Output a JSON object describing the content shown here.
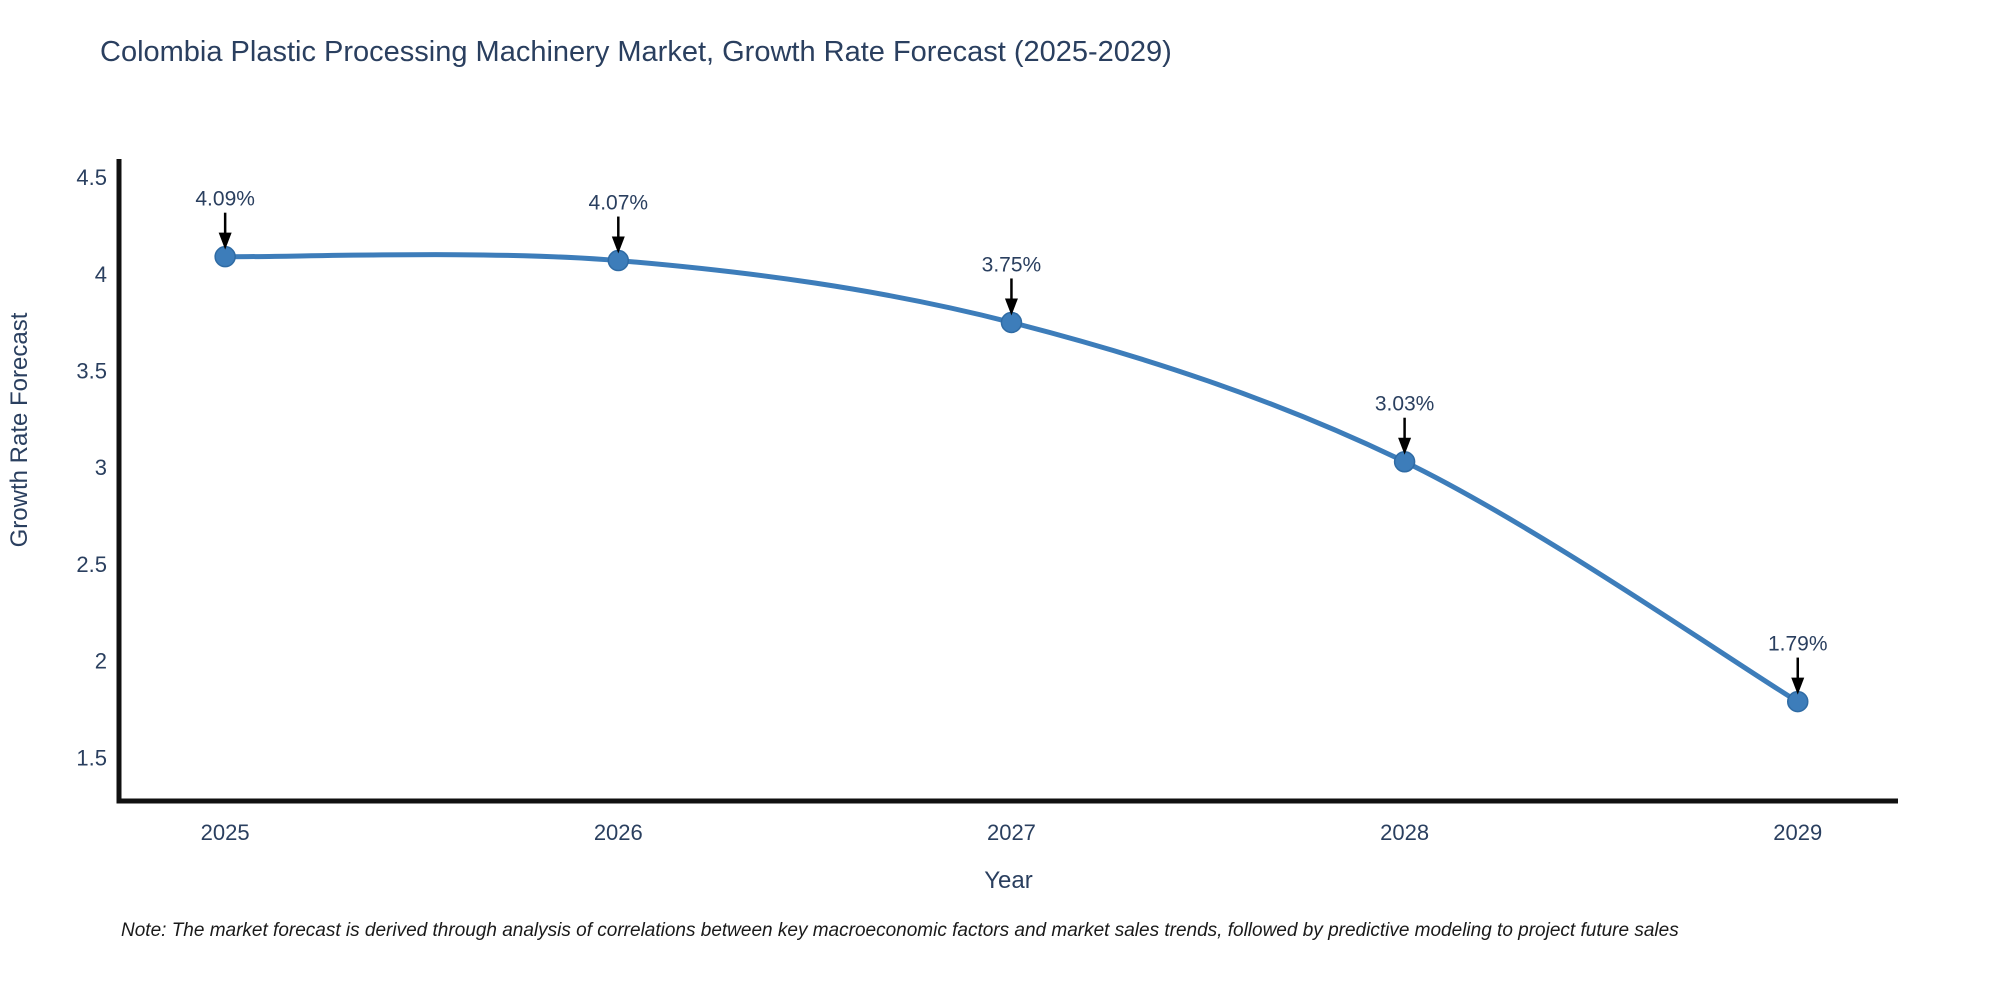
{
  "title": "Colombia Plastic Processing Machinery Market, Growth Rate Forecast (2025-2029)",
  "note": "Note: The market forecast is derived through analysis of correlations between key macroeconomic factors and market sales trends, followed by predictive modeling to project future sales",
  "chart_data": {
    "type": "line",
    "title": "Colombia Plastic Processing Machinery Market, Growth Rate Forecast (2025-2029)",
    "x": [
      2025,
      2026,
      2027,
      2028,
      2029
    ],
    "xticks": [
      "2025",
      "2026",
      "2027",
      "2028",
      "2029"
    ],
    "series": [
      {
        "name": "Growth Rate Forecast",
        "values": [
          4.09,
          4.07,
          3.75,
          3.03,
          1.79
        ]
      }
    ],
    "point_labels": [
      "4.09%",
      "4.07%",
      "3.75%",
      "3.03%",
      "1.79%"
    ],
    "xlabel": "Year",
    "ylabel": "Growth Rate Forecast",
    "yticks": [
      "4.5",
      "4",
      "3.5",
      "3",
      "2.5",
      "2",
      "1.5"
    ],
    "ylim": [
      1.276,
      4.595
    ],
    "xlim": [
      2024.73,
      2029.255
    ],
    "grid": false,
    "legend": "none",
    "line_shape": "spline",
    "colors": {
      "line": "#3d7dba",
      "marker": "#3d7dba",
      "marker_edge": "#2f6ba4",
      "axis_line": "#111111",
      "text": "#2a3f5f",
      "annotation_text": "#2a3f5f",
      "annotation_arrow": "#000000",
      "background": "#ffffff"
    }
  }
}
